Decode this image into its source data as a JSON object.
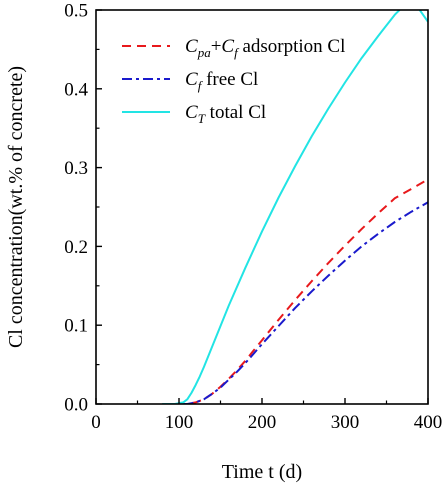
{
  "chart_data": {
    "type": "line",
    "xlabel": "Time t (d)",
    "ylabel": "Cl concentration(wt.% of concrete)",
    "xlim": [
      0,
      400
    ],
    "ylim": [
      0,
      0.5
    ],
    "xticks": [
      "0",
      "100",
      "200",
      "300",
      "400"
    ],
    "yticks": [
      "0.0",
      "0.1",
      "0.2",
      "0.3",
      "0.4",
      "0.5"
    ],
    "grid": false,
    "legend_position": "top-right",
    "series": [
      {
        "name": "adsorption Cl",
        "legend_main_a": "C",
        "legend_sub_a": "pa",
        "legend_plus": "+",
        "legend_main_b": "C",
        "legend_sub_b": "f",
        "color": "#e8191c",
        "dash": "dashed",
        "x": [
          80,
          100,
          110,
          120,
          130,
          140,
          150,
          160,
          170,
          180,
          190,
          200,
          220,
          240,
          260,
          280,
          300,
          320,
          340,
          360,
          380,
          400
        ],
        "values": [
          0.0,
          0.0,
          0.0,
          0.002,
          0.006,
          0.013,
          0.022,
          0.032,
          0.043,
          0.055,
          0.068,
          0.081,
          0.107,
          0.132,
          0.156,
          0.179,
          0.201,
          0.222,
          0.242,
          0.261,
          0.273,
          0.285
        ]
      },
      {
        "name": "free Cl",
        "legend_main_a": "C",
        "legend_sub_a": "f",
        "color": "#1a1acc",
        "dash": "dashdot",
        "x": [
          80,
          100,
          110,
          120,
          130,
          140,
          150,
          160,
          170,
          180,
          190,
          200,
          220,
          240,
          260,
          280,
          300,
          320,
          340,
          360,
          380,
          400
        ],
        "values": [
          0.0,
          0.0,
          0.0,
          0.002,
          0.006,
          0.013,
          0.021,
          0.031,
          0.041,
          0.052,
          0.064,
          0.076,
          0.099,
          0.122,
          0.143,
          0.163,
          0.182,
          0.2,
          0.216,
          0.231,
          0.244,
          0.256
        ]
      },
      {
        "name": "total Cl",
        "legend_main_a": "C",
        "legend_sub_a": "T",
        "color": "#22e4e4",
        "dash": "solid",
        "x": [
          80,
          95,
          105,
          110,
          115,
          120,
          125,
          130,
          140,
          150,
          160,
          180,
          200,
          220,
          240,
          260,
          280,
          300,
          320,
          340,
          360,
          380,
          400
        ],
        "values": [
          0.0,
          0.0,
          0.002,
          0.006,
          0.014,
          0.024,
          0.035,
          0.047,
          0.073,
          0.099,
          0.125,
          0.173,
          0.219,
          0.262,
          0.302,
          0.34,
          0.375,
          0.408,
          0.439,
          0.467,
          0.494,
          0.515,
          0.485
        ]
      }
    ]
  }
}
